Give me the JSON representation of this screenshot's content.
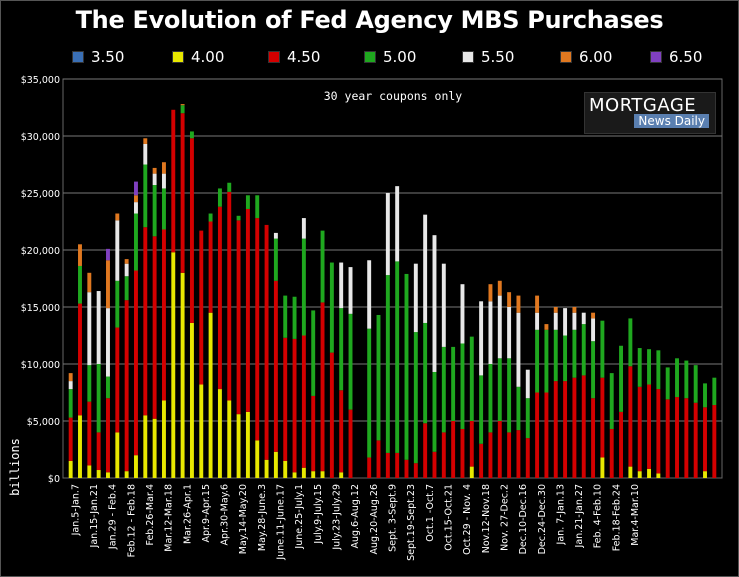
{
  "chart_data": {
    "type": "bar",
    "stacked": true,
    "title": "The Evolution of Fed Agency MBS Purchases",
    "annotation": "30 year coupons only",
    "ylabel": "billions",
    "ylim": [
      0,
      35000
    ],
    "yticks": [
      "$0",
      "$5,000",
      "$10,000",
      "$15,000",
      "$20,000",
      "$25,000",
      "$30,000",
      "$35,000"
    ],
    "ytick_values": [
      0,
      5000,
      10000,
      15000,
      20000,
      25000,
      30000,
      35000
    ],
    "grid": true,
    "legend_position": "top",
    "series": [
      {
        "name": "3.50",
        "color": "#3a6fb5"
      },
      {
        "name": "4.00",
        "color": "#e8e800"
      },
      {
        "name": "4.50",
        "color": "#d40000"
      },
      {
        "name": "5.00",
        "color": "#1fa81f"
      },
      {
        "name": "5.50",
        "color": "#e8e8e8"
      },
      {
        "name": "6.00",
        "color": "#e07820"
      },
      {
        "name": "6.50",
        "color": "#8040c0"
      }
    ],
    "week_labels": [
      "Jan.5-Jan.7",
      "Jan.15-Jan.21",
      "Jan.29 - Feb.4",
      "Feb.12 - Feb.18",
      "Feb.26-Mar.4",
      "Mar.12-Mar.18",
      "Mar.26-Apr.1",
      "Apr.9-Apr.15",
      "Apr.30-May.6",
      "May.14-May.20",
      "May.28-June.3",
      "June.11-June.17",
      "June.25-July.1",
      "July.9-July.15",
      "July.23-July.29",
      "Aug.6-Aug.12",
      "Aug.20-Aug.26",
      "Sept. 3-Sept.9",
      "Sept.19-Sept.23",
      "Oct.1 -Oct.7",
      "Oct.15-Oct.21",
      "Oct.29 - Nov. 4",
      "Nov.12-Nov.18",
      "Nov. 27-Dec.2",
      "Dec.10-Dec.16",
      "Dec.24-Dec.30",
      "Jan. 7-Jan.13",
      "Jan.21-Jan.27",
      "Feb. 4-Feb.10",
      "Feb.18-Feb.24",
      "Mar.4-Mar.10"
    ],
    "bars": [
      [
        0,
        1500,
        3800,
        2500,
        700,
        700,
        0
      ],
      [
        0,
        5500,
        9800,
        3300,
        0,
        1900,
        0
      ],
      [
        0,
        1100,
        5600,
        3200,
        6400,
        1700,
        0
      ],
      [
        0,
        700,
        3300,
        6000,
        6400,
        0,
        0
      ],
      [
        0,
        500,
        6500,
        1900,
        6000,
        4200,
        1000
      ],
      [
        0,
        4000,
        9200,
        4100,
        5300,
        600,
        0
      ],
      [
        0,
        600,
        15000,
        2100,
        1100,
        400,
        0
      ],
      [
        0,
        2000,
        16200,
        5000,
        1000,
        600,
        1200
      ],
      [
        0,
        5500,
        16500,
        5500,
        1800,
        500,
        0
      ],
      [
        0,
        5200,
        16000,
        4500,
        1000,
        500,
        0
      ],
      [
        0,
        6800,
        15000,
        3600,
        1300,
        1000,
        0
      ],
      [
        0,
        19800,
        12500,
        0,
        0,
        0,
        0
      ],
      [
        0,
        18000,
        14000,
        700,
        0,
        100,
        0
      ],
      [
        0,
        13600,
        16200,
        600,
        0,
        0,
        0
      ],
      [
        0,
        8200,
        13500,
        0,
        0,
        0,
        0
      ],
      [
        0,
        14500,
        8000,
        700,
        0,
        0,
        0
      ],
      [
        0,
        7800,
        16000,
        1600,
        0,
        0,
        0
      ],
      [
        0,
        6800,
        18300,
        800,
        0,
        0,
        0
      ],
      [
        0,
        5600,
        17000,
        400,
        0,
        0,
        0
      ],
      [
        0,
        5800,
        17800,
        1200,
        0,
        0,
        0
      ],
      [
        0,
        3300,
        19500,
        2000,
        0,
        0,
        0
      ],
      [
        0,
        1600,
        20600,
        0,
        0,
        0,
        0
      ],
      [
        0,
        2300,
        15000,
        3700,
        500,
        0,
        0
      ],
      [
        0,
        1500,
        10800,
        3700,
        0,
        0,
        0
      ],
      [
        0,
        500,
        11700,
        3700,
        0,
        0,
        0
      ],
      [
        0,
        900,
        11600,
        8500,
        1800,
        0,
        0
      ],
      [
        0,
        600,
        6600,
        7500,
        0,
        0,
        0
      ],
      [
        0,
        600,
        14800,
        6300,
        0,
        0,
        0
      ],
      [
        0,
        0,
        11000,
        7900,
        0,
        0,
        0
      ],
      [
        0,
        500,
        7200,
        7200,
        4000,
        0,
        0
      ],
      [
        0,
        0,
        6000,
        8400,
        4100,
        0,
        0
      ],
      [
        0,
        0,
        0,
        0,
        0,
        0,
        0
      ],
      [
        0,
        0,
        1800,
        11300,
        6000,
        0,
        0
      ],
      [
        0,
        0,
        3300,
        11000,
        0,
        0,
        0
      ],
      [
        0,
        0,
        2200,
        15600,
        7200,
        0,
        0
      ],
      [
        0,
        0,
        2200,
        16800,
        6600,
        0,
        0
      ],
      [
        0,
        0,
        1600,
        16300,
        0,
        0,
        0
      ],
      [
        0,
        0,
        1300,
        11500,
        6000,
        0,
        0
      ],
      [
        0,
        0,
        4800,
        8800,
        9500,
        0,
        0
      ],
      [
        0,
        0,
        2300,
        7000,
        12000,
        0,
        0
      ],
      [
        0,
        0,
        4000,
        7500,
        7300,
        0,
        0
      ],
      [
        0,
        0,
        5000,
        6500,
        0,
        0,
        0
      ],
      [
        0,
        0,
        4300,
        7500,
        5200,
        0,
        0
      ],
      [
        0,
        1000,
        4000,
        7400,
        0,
        0,
        0
      ],
      [
        0,
        0,
        3000,
        6000,
        6500,
        0,
        0
      ],
      [
        0,
        0,
        4000,
        6000,
        5500,
        1500,
        0
      ],
      [
        0,
        0,
        5000,
        5500,
        5500,
        1300,
        0
      ],
      [
        0,
        0,
        4000,
        6500,
        4500,
        1300,
        0
      ],
      [
        0,
        0,
        4200,
        3800,
        6500,
        1500,
        0
      ],
      [
        0,
        0,
        3500,
        3500,
        2500,
        0,
        0
      ],
      [
        0,
        0,
        7500,
        5500,
        1500,
        1500,
        0
      ],
      [
        0,
        0,
        7500,
        5500,
        0,
        500,
        0
      ],
      [
        0,
        0,
        8500,
        4500,
        1500,
        500,
        0
      ],
      [
        0,
        0,
        8500,
        4000,
        2400,
        0,
        0
      ],
      [
        0,
        0,
        8800,
        4200,
        1500,
        500,
        0
      ],
      [
        0,
        0,
        9000,
        4500,
        1000,
        0,
        0
      ],
      [
        0,
        0,
        7000,
        5000,
        2000,
        500,
        0
      ],
      [
        0,
        1800,
        7000,
        5000,
        0,
        0,
        0
      ],
      [
        0,
        0,
        4300,
        4900,
        0,
        0,
        0
      ],
      [
        0,
        0,
        5800,
        5800,
        0,
        0,
        0
      ],
      [
        0,
        1000,
        8800,
        4200,
        0,
        0,
        0
      ],
      [
        0,
        600,
        7400,
        3400,
        0,
        0,
        0
      ],
      [
        0,
        800,
        7400,
        3100,
        0,
        0,
        0
      ],
      [
        0,
        400,
        7400,
        3400,
        0,
        0,
        0
      ],
      [
        0,
        0,
        6900,
        2800,
        0,
        0,
        0
      ],
      [
        0,
        0,
        7100,
        3400,
        0,
        0,
        0
      ],
      [
        0,
        0,
        7000,
        3300,
        0,
        0,
        0
      ],
      [
        0,
        0,
        6600,
        3300,
        0,
        0,
        0
      ],
      [
        0,
        600,
        5600,
        2100,
        0,
        0,
        0
      ],
      [
        0,
        0,
        6400,
        2400,
        0,
        0,
        0
      ]
    ]
  }
}
